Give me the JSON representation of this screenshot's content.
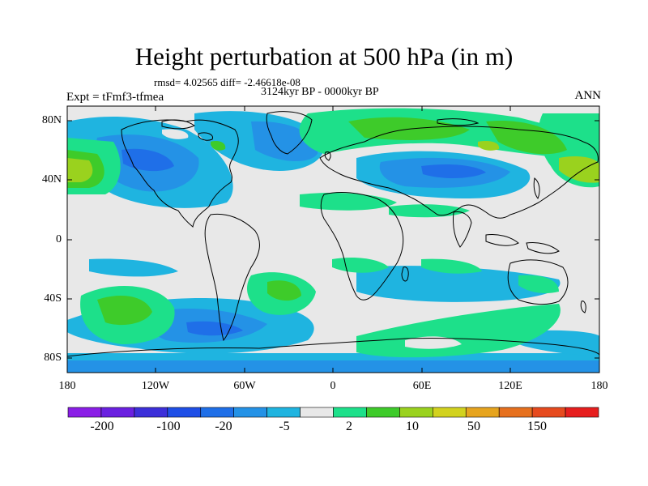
{
  "title": "Height perturbation at 500 hPa (in m)",
  "stats_line": "rmsd= 4.02565 diff= -2.46618e-08",
  "period": "3124kyr BP - 0000kyr BP",
  "experiment": "Expt = tFmf3-tfmea",
  "season": "ANN",
  "lat_labels": [
    "80N",
    "40N",
    "0",
    "40S",
    "80S"
  ],
  "lon_labels": [
    "180",
    "120W",
    "60W",
    "0",
    "60E",
    "120E",
    "180"
  ],
  "colorbar": {
    "colors": [
      "#8a1ee6",
      "#6a20e0",
      "#3c2fd9",
      "#1e4ee6",
      "#1f6fe8",
      "#2492e6",
      "#1fb4e0",
      "#e8e8e8",
      "#1de08a",
      "#3ecb2a",
      "#9ad21e",
      "#d2d21e",
      "#e6a41e",
      "#e6701e",
      "#e64a1e",
      "#e61e1e"
    ],
    "labels": [
      "-200",
      "-100",
      "-20",
      "-5",
      "2",
      "10",
      "50",
      "150"
    ]
  },
  "colors": {
    "background": "#e8e8e8",
    "lightblue": "#1fb4e0",
    "midblue": "#2492e6",
    "darkblue": "#1f6fe8",
    "teal": "#1de08a",
    "green": "#3ecb2a",
    "yellowgreen": "#9ad21e"
  }
}
